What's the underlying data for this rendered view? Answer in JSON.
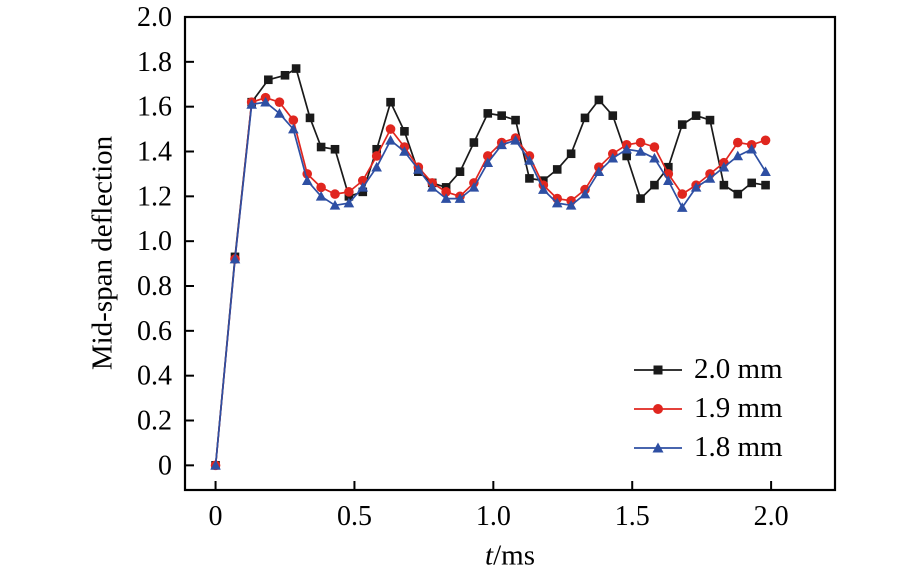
{
  "chart_data": {
    "type": "line",
    "title": "",
    "xlabel": "t/ms",
    "xlabel_variable": "t",
    "xlabel_unit": "/ms",
    "ylabel": "Mid-span deflection",
    "xlim": [
      -0.11,
      2.23
    ],
    "ylim": [
      -0.11,
      2.0
    ],
    "xticks": [
      0,
      0.5,
      1.0,
      1.5,
      2.0
    ],
    "xtick_labels": [
      "0",
      "0.5",
      "1.0",
      "1.5",
      "2.0"
    ],
    "yticks": [
      0,
      0.2,
      0.4,
      0.6,
      0.8,
      1.0,
      1.2,
      1.4,
      1.6,
      1.8,
      2.0
    ],
    "ytick_labels": [
      "0",
      "0.2",
      "0.4",
      "0.6",
      "0.8",
      "1.0",
      "1.2",
      "1.4",
      "1.6",
      "1.8",
      "2.0"
    ],
    "grid": false,
    "legend_position": "inside-lower-right",
    "axis_color": "#000000",
    "series": [
      {
        "name": "2.0 mm",
        "color": "#1a1a1a",
        "marker": "square",
        "points": [
          [
            0.0,
            0.0
          ],
          [
            0.07,
            0.93
          ],
          [
            0.13,
            1.62
          ],
          [
            0.19,
            1.72
          ],
          [
            0.25,
            1.74
          ],
          [
            0.29,
            1.77
          ],
          [
            0.34,
            1.55
          ],
          [
            0.38,
            1.42
          ],
          [
            0.43,
            1.41
          ],
          [
            0.48,
            1.2
          ],
          [
            0.53,
            1.22
          ],
          [
            0.58,
            1.41
          ],
          [
            0.63,
            1.62
          ],
          [
            0.68,
            1.49
          ],
          [
            0.73,
            1.31
          ],
          [
            0.78,
            1.26
          ],
          [
            0.83,
            1.24
          ],
          [
            0.88,
            1.31
          ],
          [
            0.93,
            1.44
          ],
          [
            0.98,
            1.57
          ],
          [
            1.03,
            1.56
          ],
          [
            1.08,
            1.54
          ],
          [
            1.13,
            1.28
          ],
          [
            1.18,
            1.27
          ],
          [
            1.23,
            1.32
          ],
          [
            1.28,
            1.39
          ],
          [
            1.33,
            1.55
          ],
          [
            1.38,
            1.63
          ],
          [
            1.43,
            1.56
          ],
          [
            1.48,
            1.38
          ],
          [
            1.53,
            1.19
          ],
          [
            1.58,
            1.25
          ],
          [
            1.63,
            1.33
          ],
          [
            1.68,
            1.52
          ],
          [
            1.73,
            1.56
          ],
          [
            1.78,
            1.54
          ],
          [
            1.83,
            1.25
          ],
          [
            1.88,
            1.21
          ],
          [
            1.93,
            1.26
          ],
          [
            1.98,
            1.25
          ]
        ]
      },
      {
        "name": "1.9 mm",
        "color": "#e0261f",
        "marker": "circle",
        "points": [
          [
            0.0,
            0.0
          ],
          [
            0.07,
            0.92
          ],
          [
            0.13,
            1.62
          ],
          [
            0.18,
            1.64
          ],
          [
            0.23,
            1.62
          ],
          [
            0.28,
            1.54
          ],
          [
            0.33,
            1.3
          ],
          [
            0.38,
            1.24
          ],
          [
            0.43,
            1.21
          ],
          [
            0.48,
            1.22
          ],
          [
            0.53,
            1.27
          ],
          [
            0.58,
            1.38
          ],
          [
            0.63,
            1.5
          ],
          [
            0.68,
            1.42
          ],
          [
            0.73,
            1.33
          ],
          [
            0.78,
            1.26
          ],
          [
            0.83,
            1.22
          ],
          [
            0.88,
            1.2
          ],
          [
            0.93,
            1.26
          ],
          [
            0.98,
            1.38
          ],
          [
            1.03,
            1.44
          ],
          [
            1.08,
            1.46
          ],
          [
            1.13,
            1.38
          ],
          [
            1.18,
            1.25
          ],
          [
            1.23,
            1.19
          ],
          [
            1.28,
            1.18
          ],
          [
            1.33,
            1.23
          ],
          [
            1.38,
            1.33
          ],
          [
            1.43,
            1.39
          ],
          [
            1.48,
            1.43
          ],
          [
            1.53,
            1.44
          ],
          [
            1.58,
            1.42
          ],
          [
            1.63,
            1.3
          ],
          [
            1.68,
            1.21
          ],
          [
            1.73,
            1.25
          ],
          [
            1.78,
            1.3
          ],
          [
            1.83,
            1.35
          ],
          [
            1.88,
            1.44
          ],
          [
            1.93,
            1.43
          ],
          [
            1.98,
            1.45
          ]
        ]
      },
      {
        "name": "1.8 mm",
        "color": "#2e4fa3",
        "marker": "triangle",
        "points": [
          [
            0.0,
            0.0
          ],
          [
            0.07,
            0.92
          ],
          [
            0.13,
            1.61
          ],
          [
            0.18,
            1.62
          ],
          [
            0.23,
            1.57
          ],
          [
            0.28,
            1.5
          ],
          [
            0.33,
            1.27
          ],
          [
            0.38,
            1.2
          ],
          [
            0.43,
            1.16
          ],
          [
            0.48,
            1.17
          ],
          [
            0.53,
            1.24
          ],
          [
            0.58,
            1.33
          ],
          [
            0.63,
            1.45
          ],
          [
            0.68,
            1.4
          ],
          [
            0.73,
            1.32
          ],
          [
            0.78,
            1.24
          ],
          [
            0.83,
            1.19
          ],
          [
            0.88,
            1.19
          ],
          [
            0.93,
            1.24
          ],
          [
            0.98,
            1.35
          ],
          [
            1.03,
            1.43
          ],
          [
            1.08,
            1.45
          ],
          [
            1.13,
            1.36
          ],
          [
            1.18,
            1.23
          ],
          [
            1.23,
            1.17
          ],
          [
            1.28,
            1.16
          ],
          [
            1.33,
            1.21
          ],
          [
            1.38,
            1.31
          ],
          [
            1.43,
            1.37
          ],
          [
            1.48,
            1.41
          ],
          [
            1.53,
            1.4
          ],
          [
            1.58,
            1.37
          ],
          [
            1.63,
            1.27
          ],
          [
            1.68,
            1.15
          ],
          [
            1.73,
            1.24
          ],
          [
            1.78,
            1.28
          ],
          [
            1.83,
            1.33
          ],
          [
            1.88,
            1.38
          ],
          [
            1.93,
            1.41
          ],
          [
            1.98,
            1.31
          ]
        ]
      }
    ]
  }
}
